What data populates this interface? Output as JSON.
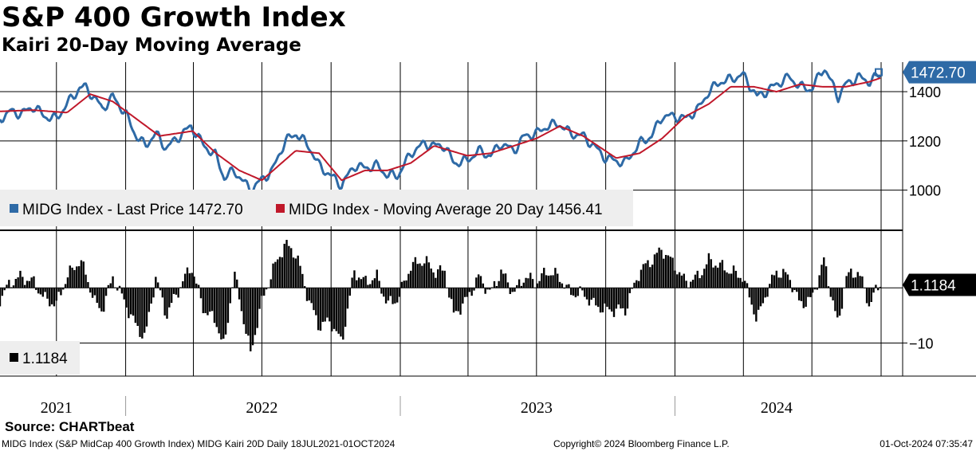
{
  "title": "S&P 400 Growth Index",
  "subtitle": "Kairi 20-Day Moving Average",
  "source": "Source: CHARTbeat",
  "footer": {
    "description": "MIDG Index (S&P MidCap 400 Growth Index) MIDG Kairi 20D  Daily 18JUL2021-01OCT2024",
    "copyright": "Copyright© 2024 Bloomberg Finance L.P.",
    "timestamp": "01-Oct-2024 07:35:47"
  },
  "colors": {
    "price": "#2e6aa6",
    "ma": "#c0182a",
    "kairi": "#000000",
    "grid": "#000000",
    "legend_bg": "#eeeeee",
    "tag_bg": "#000000"
  },
  "chart_data": [
    {
      "type": "line",
      "name": "price-panel",
      "xlim": [
        "2021-07-18",
        "2024-10-01"
      ],
      "ylim": [
        840,
        1520
      ],
      "yticks": [
        1000,
        1200,
        1400
      ],
      "ytick_labels": [
        "1000",
        "1200",
        "1400"
      ],
      "xtick_labels": [
        "2021",
        "2022",
        "2023",
        "2024"
      ],
      "last_value_label": "1472.70",
      "legend": [
        {
          "name": "MIDG Index - Last Price 1472.70",
          "color": "#2e6aa6"
        },
        {
          "name": "MIDG Index - Moving Average 20 Day 1456.41",
          "color": "#c0182a"
        }
      ],
      "series": [
        {
          "name": "MIDG Index - Last Price",
          "color": "#2e6aa6",
          "x": [
            "2021-07-18",
            "2021-08-01",
            "2021-08-15",
            "2021-09-01",
            "2021-09-15",
            "2021-10-01",
            "2021-10-15",
            "2021-11-01",
            "2021-11-08",
            "2021-11-22",
            "2021-12-01",
            "2021-12-15",
            "2022-01-01",
            "2022-01-15",
            "2022-01-27",
            "2022-02-10",
            "2022-02-24",
            "2022-03-10",
            "2022-03-29",
            "2022-04-15",
            "2022-05-01",
            "2022-05-12",
            "2022-05-25",
            "2022-06-16",
            "2022-06-30",
            "2022-07-15",
            "2022-08-01",
            "2022-08-16",
            "2022-09-01",
            "2022-09-15",
            "2022-09-30",
            "2022-10-15",
            "2022-11-01",
            "2022-11-15",
            "2022-12-01",
            "2022-12-15",
            "2022-12-29",
            "2023-01-15",
            "2023-02-02",
            "2023-02-15",
            "2023-03-01",
            "2023-03-13",
            "2023-03-31",
            "2023-04-15",
            "2023-05-01",
            "2023-05-15",
            "2023-06-01",
            "2023-06-15",
            "2023-07-01",
            "2023-07-15",
            "2023-07-31",
            "2023-08-15",
            "2023-09-01",
            "2023-09-15",
            "2023-10-01",
            "2023-10-27",
            "2023-11-15",
            "2023-12-01",
            "2023-12-15",
            "2024-01-01",
            "2024-01-15",
            "2024-02-01",
            "2024-02-15",
            "2024-03-01",
            "2024-03-15",
            "2024-03-31",
            "2024-04-15",
            "2024-04-19",
            "2024-05-01",
            "2024-05-15",
            "2024-06-01",
            "2024-06-15",
            "2024-07-01",
            "2024-07-17",
            "2024-08-05",
            "2024-08-15",
            "2024-09-01",
            "2024-09-15",
            "2024-10-01"
          ],
          "values": [
            1290,
            1320,
            1310,
            1340,
            1300,
            1290,
            1350,
            1415,
            1420,
            1370,
            1330,
            1380,
            1310,
            1220,
            1180,
            1230,
            1170,
            1210,
            1260,
            1180,
            1140,
            1050,
            1080,
            1000,
            1040,
            1080,
            1200,
            1230,
            1180,
            1100,
            1060,
            1020,
            1100,
            1090,
            1100,
            1060,
            1060,
            1150,
            1190,
            1180,
            1180,
            1110,
            1120,
            1160,
            1140,
            1190,
            1160,
            1220,
            1230,
            1260,
            1270,
            1230,
            1220,
            1180,
            1130,
            1110,
            1190,
            1220,
            1300,
            1300,
            1290,
            1330,
            1400,
            1440,
            1450,
            1470,
            1400,
            1380,
            1400,
            1430,
            1460,
            1420,
            1410,
            1500,
            1380,
            1430,
            1460,
            1440,
            1472.7
          ]
        },
        {
          "name": "MIDG Index - Moving Average 20 Day",
          "color": "#c0182a",
          "x": [
            "2021-07-18",
            "2021-09-01",
            "2021-10-15",
            "2021-11-15",
            "2021-12-15",
            "2022-01-15",
            "2022-02-15",
            "2022-03-31",
            "2022-05-01",
            "2022-06-01",
            "2022-07-01",
            "2022-08-15",
            "2022-09-15",
            "2022-10-15",
            "2022-11-15",
            "2022-12-15",
            "2023-01-15",
            "2023-02-15",
            "2023-03-31",
            "2023-05-01",
            "2023-06-01",
            "2023-07-01",
            "2023-08-01",
            "2023-09-01",
            "2023-10-15",
            "2023-11-15",
            "2023-12-15",
            "2024-01-15",
            "2024-02-15",
            "2024-03-15",
            "2024-04-15",
            "2024-05-15",
            "2024-06-15",
            "2024-07-15",
            "2024-08-15",
            "2024-09-15",
            "2024-10-01"
          ],
          "values": [
            1320,
            1325,
            1315,
            1390,
            1360,
            1290,
            1220,
            1240,
            1150,
            1080,
            1040,
            1160,
            1150,
            1040,
            1080,
            1080,
            1110,
            1180,
            1140,
            1150,
            1180,
            1210,
            1260,
            1220,
            1130,
            1150,
            1210,
            1300,
            1350,
            1420,
            1420,
            1400,
            1430,
            1420,
            1420,
            1440,
            1456.41
          ]
        }
      ]
    },
    {
      "type": "bar",
      "name": "kairi-panel",
      "ylim": [
        -16,
        10
      ],
      "yticks": [
        -10
      ],
      "ytick_labels": [
        "-10"
      ],
      "last_value_label": "1.1184",
      "legend": [
        {
          "name": "1.1184",
          "color": "#000000"
        }
      ],
      "series": [
        {
          "name": "MIDG Kairi 20D",
          "color": "#000000",
          "x": [
            "2021-07-18",
            "2021-08-01",
            "2021-08-15",
            "2021-09-01",
            "2021-09-15",
            "2021-10-01",
            "2021-10-15",
            "2021-11-01",
            "2021-11-08",
            "2021-11-22",
            "2021-12-01",
            "2021-12-15",
            "2022-01-01",
            "2022-01-15",
            "2022-01-27",
            "2022-02-10",
            "2022-02-24",
            "2022-03-10",
            "2022-03-29",
            "2022-04-15",
            "2022-05-01",
            "2022-05-12",
            "2022-05-25",
            "2022-06-16",
            "2022-06-30",
            "2022-07-15",
            "2022-08-01",
            "2022-08-16",
            "2022-09-01",
            "2022-09-15",
            "2022-09-30",
            "2022-10-15",
            "2022-11-01",
            "2022-11-15",
            "2022-12-01",
            "2022-12-15",
            "2022-12-29",
            "2023-01-15",
            "2023-02-02",
            "2023-02-15",
            "2023-03-01",
            "2023-03-13",
            "2023-03-31",
            "2023-04-15",
            "2023-05-01",
            "2023-05-15",
            "2023-06-01",
            "2023-06-15",
            "2023-07-01",
            "2023-07-15",
            "2023-07-31",
            "2023-08-15",
            "2023-09-01",
            "2023-09-15",
            "2023-10-01",
            "2023-10-27",
            "2023-11-15",
            "2023-12-01",
            "2023-12-15",
            "2024-01-01",
            "2024-01-15",
            "2024-02-01",
            "2024-02-15",
            "2024-03-01",
            "2024-03-15",
            "2024-03-31",
            "2024-04-15",
            "2024-04-19",
            "2024-05-01",
            "2024-05-15",
            "2024-06-01",
            "2024-06-15",
            "2024-07-01",
            "2024-07-17",
            "2024-08-05",
            "2024-08-15",
            "2024-09-01",
            "2024-09-15",
            "2024-10-01"
          ],
          "values": [
            -2,
            1,
            2,
            1,
            -2,
            -3,
            2,
            5,
            3,
            -3,
            -4,
            2,
            -3,
            -7,
            -9,
            2,
            -5,
            -1,
            4,
            -4,
            -6,
            -11,
            3,
            -12,
            -3,
            3,
            8,
            6,
            -2,
            -7,
            -6,
            -10,
            3,
            1,
            2,
            -3,
            -2,
            4,
            5,
            3,
            3,
            -5,
            -2,
            2,
            -1,
            3,
            -1,
            2,
            1,
            3,
            2,
            -1,
            -1,
            -3,
            -4,
            -4,
            3,
            5,
            7,
            4,
            1,
            2,
            5,
            4,
            3,
            2,
            -4,
            -6,
            -1,
            3,
            2,
            -3,
            -2,
            5,
            -7,
            2,
            3,
            -3,
            1.1184
          ]
        }
      ]
    }
  ]
}
